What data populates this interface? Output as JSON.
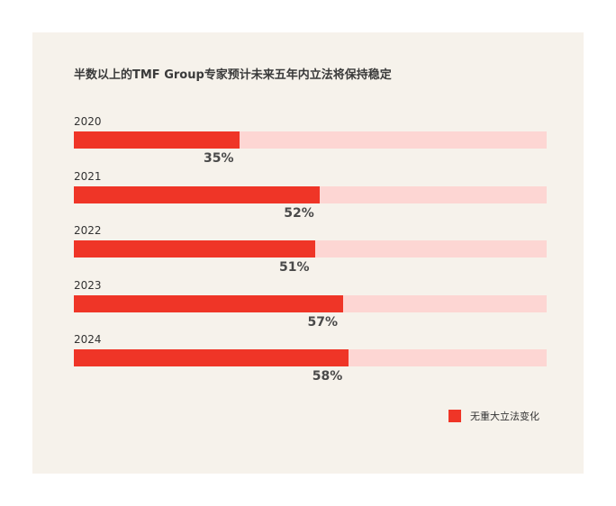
{
  "colors": {
    "background": "#ffffff",
    "card": "#f6f2eb",
    "bar_fill": "#ef3527",
    "bar_track": "#fdd6d3"
  },
  "chart_data": {
    "type": "bar",
    "orientation": "horizontal",
    "title": "半数以上的TMF Group专家预计未来五年内立法将保持稳定",
    "categories": [
      "2020",
      "2021",
      "2022",
      "2023",
      "2024"
    ],
    "series": [
      {
        "name": "无重大立法变化",
        "values": [
          35,
          52,
          51,
          57,
          58
        ]
      }
    ],
    "data_labels": [
      "35%",
      "52%",
      "51%",
      "57%",
      "58%"
    ],
    "xlim": [
      0,
      100
    ],
    "unit": "%",
    "grid": false,
    "legend": {
      "position": "bottom-right",
      "entries": [
        "无重大立法变化"
      ]
    }
  }
}
